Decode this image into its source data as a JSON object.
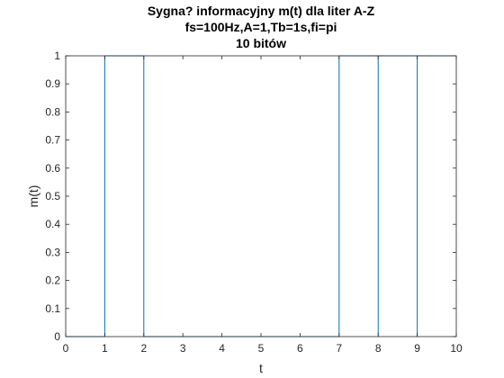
{
  "chart_data": {
    "type": "line",
    "title_lines": [
      "Sygna? informacyjny m(t) dla liter A-Z",
      "fs=100Hz,A=1,Tb=1s,fi=pi",
      "10 bitów"
    ],
    "xlabel": "t",
    "ylabel": "m(t)",
    "xlim": [
      0,
      10
    ],
    "ylim": [
      0,
      1
    ],
    "x_ticks": [
      "0",
      "1",
      "2",
      "3",
      "4",
      "5",
      "6",
      "7",
      "8",
      "9",
      "10"
    ],
    "y_ticks": [
      "0",
      "0.1",
      "0.2",
      "0.3",
      "0.4",
      "0.5",
      "0.6",
      "0.7",
      "0.8",
      "0.9",
      "1"
    ],
    "grid": false,
    "bits": [
      0,
      1,
      0,
      0,
      0,
      0,
      0,
      1,
      1,
      1
    ],
    "series": [
      {
        "style": "step",
        "color": "#0072BD",
        "x": [
          0,
          1,
          1,
          2,
          2,
          7,
          7,
          8,
          8,
          9,
          9,
          10
        ],
        "y": [
          0,
          0,
          1,
          1,
          0,
          0,
          1,
          1,
          1,
          1,
          1,
          1
        ],
        "vertical_markers_at": [
          8,
          9
        ]
      }
    ]
  }
}
